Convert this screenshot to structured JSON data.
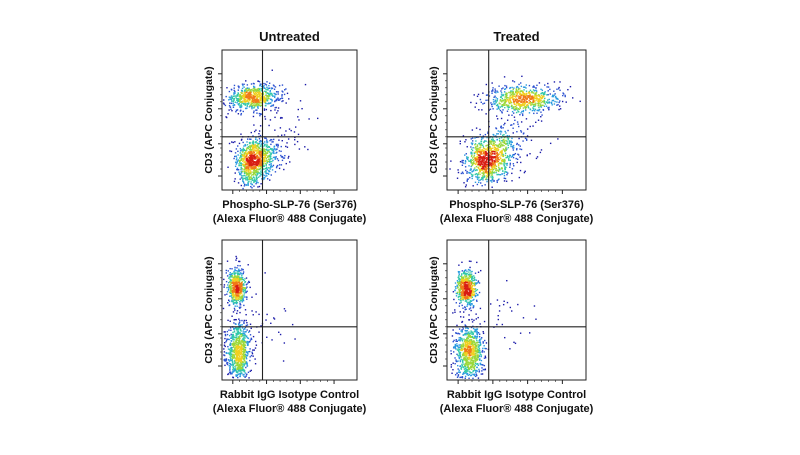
{
  "chart_data": [
    {
      "type": "scatter",
      "title": "Untreated",
      "xlabel": "Phospho-SLP-76 (Ser376)",
      "xlabel2": "(Alexa Fluor® 488 Conjugate)",
      "ylabel": "CD3 (APC Conjugate)",
      "xlim": [
        0,
        1
      ],
      "ylim": [
        0,
        1
      ],
      "gate_x": 0.3,
      "gate_y": 0.38,
      "populations": [
        {
          "cx": 0.23,
          "cy": 0.66,
          "sx": 0.1,
          "sy": 0.045,
          "n": 650,
          "tilt": 0.15
        },
        {
          "cx": 0.22,
          "cy": 0.2,
          "sx": 0.055,
          "sy": 0.085,
          "n": 700,
          "tilt": 0.0
        },
        {
          "cx": 0.32,
          "cy": 0.24,
          "sx": 0.07,
          "sy": 0.06,
          "n": 300,
          "tilt": 0.0
        },
        {
          "cx": 0.45,
          "cy": 0.45,
          "sx": 0.12,
          "sy": 0.14,
          "n": 60,
          "tilt": 0.0
        }
      ]
    },
    {
      "type": "scatter",
      "title": "Treated",
      "xlabel": "Phospho-SLP-76 (Ser376)",
      "xlabel2": "(Alexa Fluor® 488 Conjugate)",
      "ylabel": "CD3 (APC Conjugate)",
      "xlim": [
        0,
        1
      ],
      "ylim": [
        0,
        1
      ],
      "gate_x": 0.3,
      "gate_y": 0.38,
      "populations": [
        {
          "cx": 0.55,
          "cy": 0.65,
          "sx": 0.13,
          "sy": 0.05,
          "n": 650,
          "tilt": 0.0
        },
        {
          "cx": 0.28,
          "cy": 0.2,
          "sx": 0.075,
          "sy": 0.08,
          "n": 700,
          "tilt": 0.0
        },
        {
          "cx": 0.38,
          "cy": 0.3,
          "sx": 0.09,
          "sy": 0.08,
          "n": 250,
          "tilt": 0.0
        },
        {
          "cx": 0.55,
          "cy": 0.45,
          "sx": 0.12,
          "sy": 0.13,
          "n": 50,
          "tilt": 0.0
        }
      ]
    },
    {
      "type": "scatter",
      "title": "",
      "xlabel": "Rabbit IgG Isotype Control",
      "xlabel2": "(Alexa Fluor® 488 Conjugate)",
      "ylabel": "CD3 (APC Conjugate)",
      "xlim": [
        0,
        1
      ],
      "ylim": [
        0,
        1
      ],
      "gate_x": 0.3,
      "gate_y": 0.38,
      "populations": [
        {
          "cx": 0.11,
          "cy": 0.66,
          "sx": 0.035,
          "sy": 0.07,
          "n": 550,
          "tilt": 0.0
        },
        {
          "cx": 0.12,
          "cy": 0.2,
          "sx": 0.045,
          "sy": 0.11,
          "n": 750,
          "tilt": 0.0
        },
        {
          "cx": 0.3,
          "cy": 0.4,
          "sx": 0.15,
          "sy": 0.12,
          "n": 45,
          "tilt": 0.0
        }
      ]
    },
    {
      "type": "scatter",
      "title": "",
      "xlabel": "Rabbit IgG Isotype Control",
      "xlabel2": "(Alexa Fluor® 488 Conjugate)",
      "ylabel": "CD3 (APC Conjugate)",
      "xlim": [
        0,
        1
      ],
      "ylim": [
        0,
        1
      ],
      "gate_x": 0.3,
      "gate_y": 0.38,
      "populations": [
        {
          "cx": 0.14,
          "cy": 0.66,
          "sx": 0.035,
          "sy": 0.065,
          "n": 550,
          "tilt": 0.0
        },
        {
          "cx": 0.16,
          "cy": 0.2,
          "sx": 0.05,
          "sy": 0.1,
          "n": 750,
          "tilt": 0.0
        },
        {
          "cx": 0.35,
          "cy": 0.4,
          "sx": 0.15,
          "sy": 0.12,
          "n": 45,
          "tilt": 0.0
        }
      ]
    }
  ],
  "colors": {
    "axis": "#222222",
    "gate": "#222222",
    "density": [
      "#1a1aa8",
      "#2a4fd0",
      "#2a9be0",
      "#32c8a8",
      "#9ad83a",
      "#f0d020",
      "#f07a18",
      "#d81e14"
    ]
  }
}
